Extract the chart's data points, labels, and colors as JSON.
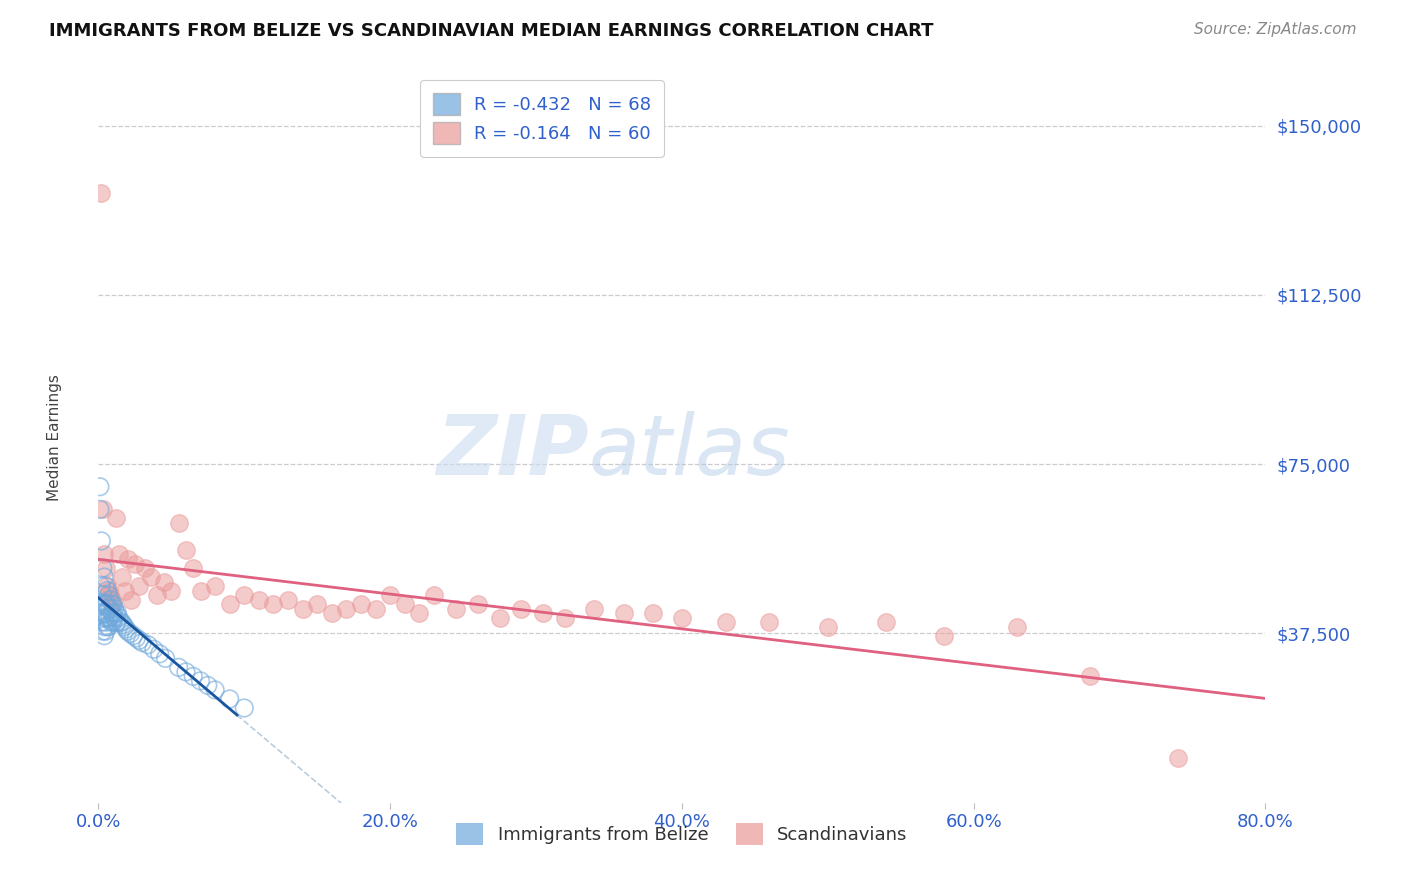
{
  "title": "IMMIGRANTS FROM BELIZE VS SCANDINAVIAN MEDIAN EARNINGS CORRELATION CHART",
  "source": "Source: ZipAtlas.com",
  "xlabel": "",
  "ylabel": "Median Earnings",
  "x_min": 0.0,
  "x_max": 0.8,
  "y_min": 0,
  "y_max": 162000,
  "y_ticks": [
    37500,
    75000,
    112500,
    150000
  ],
  "y_tick_labels": [
    "$37,500",
    "$75,000",
    "$112,500",
    "$150,000"
  ],
  "x_ticks": [
    0.0,
    0.2,
    0.4,
    0.6,
    0.8
  ],
  "x_tick_labels": [
    "0.0%",
    "20.0%",
    "40.0%",
    "60.0%",
    "80.0%"
  ],
  "legend_blue_label": "Immigrants from Belize",
  "legend_pink_label": "Scandinavians",
  "r_blue": -0.432,
  "n_blue": 68,
  "r_pink": -0.164,
  "n_pink": 60,
  "blue_color": "#6fa8dc",
  "pink_color": "#ea9999",
  "trend_blue_color": "#1a56a0",
  "trend_pink_color": "#e06080",
  "trend_dashed_color": "#bbccdd",
  "background_color": "#ffffff",
  "blue_scatter_x": [
    0.001,
    0.001,
    0.001,
    0.002,
    0.002,
    0.002,
    0.002,
    0.003,
    0.003,
    0.003,
    0.003,
    0.004,
    0.004,
    0.004,
    0.004,
    0.004,
    0.005,
    0.005,
    0.005,
    0.005,
    0.005,
    0.006,
    0.006,
    0.006,
    0.006,
    0.007,
    0.007,
    0.007,
    0.007,
    0.008,
    0.008,
    0.008,
    0.009,
    0.009,
    0.009,
    0.01,
    0.01,
    0.01,
    0.011,
    0.011,
    0.012,
    0.012,
    0.013,
    0.013,
    0.014,
    0.015,
    0.016,
    0.017,
    0.018,
    0.019,
    0.02,
    0.022,
    0.024,
    0.026,
    0.028,
    0.03,
    0.034,
    0.038,
    0.042,
    0.046,
    0.055,
    0.06,
    0.065,
    0.07,
    0.075,
    0.08,
    0.09,
    0.1
  ],
  "blue_scatter_y": [
    70000,
    65000,
    44000,
    58000,
    48000,
    42000,
    40000,
    52000,
    46000,
    42000,
    38000,
    50000,
    44000,
    41000,
    39000,
    37000,
    48000,
    44000,
    42000,
    40000,
    38000,
    47000,
    44000,
    41000,
    39000,
    46000,
    43000,
    41000,
    39000,
    45000,
    43000,
    41000,
    44000,
    42000,
    40000,
    44000,
    42000,
    40000,
    43000,
    41000,
    42000,
    40000,
    42000,
    40000,
    41000,
    40000,
    40000,
    39500,
    39000,
    38500,
    38000,
    37500,
    37000,
    36500,
    36000,
    35500,
    35000,
    34000,
    33000,
    32000,
    30000,
    29000,
    28000,
    27000,
    26000,
    25000,
    23000,
    21000
  ],
  "pink_scatter_x": [
    0.002,
    0.003,
    0.004,
    0.005,
    0.006,
    0.007,
    0.008,
    0.009,
    0.01,
    0.012,
    0.014,
    0.016,
    0.018,
    0.02,
    0.022,
    0.025,
    0.028,
    0.032,
    0.036,
    0.04,
    0.045,
    0.05,
    0.055,
    0.06,
    0.065,
    0.07,
    0.08,
    0.09,
    0.1,
    0.11,
    0.12,
    0.13,
    0.14,
    0.15,
    0.16,
    0.17,
    0.18,
    0.19,
    0.2,
    0.21,
    0.22,
    0.23,
    0.245,
    0.26,
    0.275,
    0.29,
    0.305,
    0.32,
    0.34,
    0.36,
    0.38,
    0.4,
    0.43,
    0.46,
    0.5,
    0.54,
    0.58,
    0.63,
    0.68,
    0.74
  ],
  "pink_scatter_y": [
    135000,
    65000,
    55000,
    52000,
    48000,
    47000,
    46000,
    45000,
    44000,
    63000,
    55000,
    50000,
    47000,
    54000,
    45000,
    53000,
    48000,
    52000,
    50000,
    46000,
    49000,
    47000,
    62000,
    56000,
    52000,
    47000,
    48000,
    44000,
    46000,
    45000,
    44000,
    45000,
    43000,
    44000,
    42000,
    43000,
    44000,
    43000,
    46000,
    44000,
    42000,
    46000,
    43000,
    44000,
    41000,
    43000,
    42000,
    41000,
    43000,
    42000,
    42000,
    41000,
    40000,
    40000,
    39000,
    40000,
    37000,
    39000,
    28000,
    10000
  ]
}
